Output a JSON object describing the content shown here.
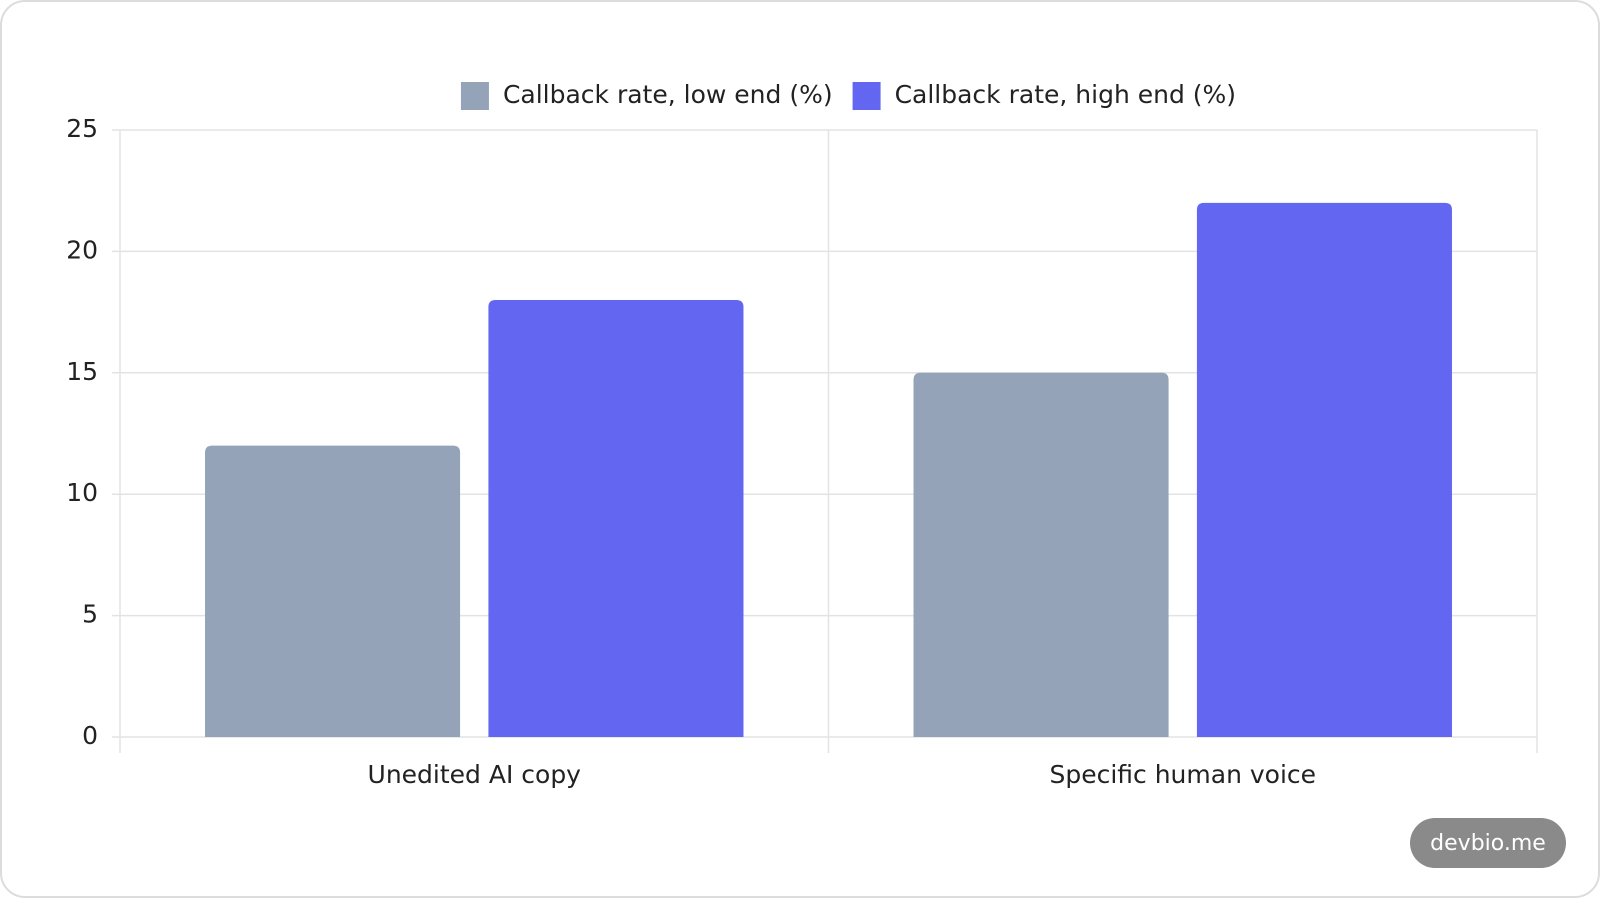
{
  "chart_data": {
    "type": "bar",
    "categories": [
      "Unedited AI copy",
      "Specific human voice"
    ],
    "series": [
      {
        "name": "Callback rate, low end (%)",
        "color": "#94a3b8",
        "values": [
          12,
          15
        ]
      },
      {
        "name": "Callback rate, high end (%)",
        "color": "#6366f1",
        "values": [
          18,
          22
        ]
      }
    ],
    "ylim": [
      0,
      25
    ],
    "yticks": [
      0,
      5,
      10,
      15,
      20,
      25
    ],
    "grid": true,
    "legend": "top",
    "watermark": "devbio.me"
  }
}
